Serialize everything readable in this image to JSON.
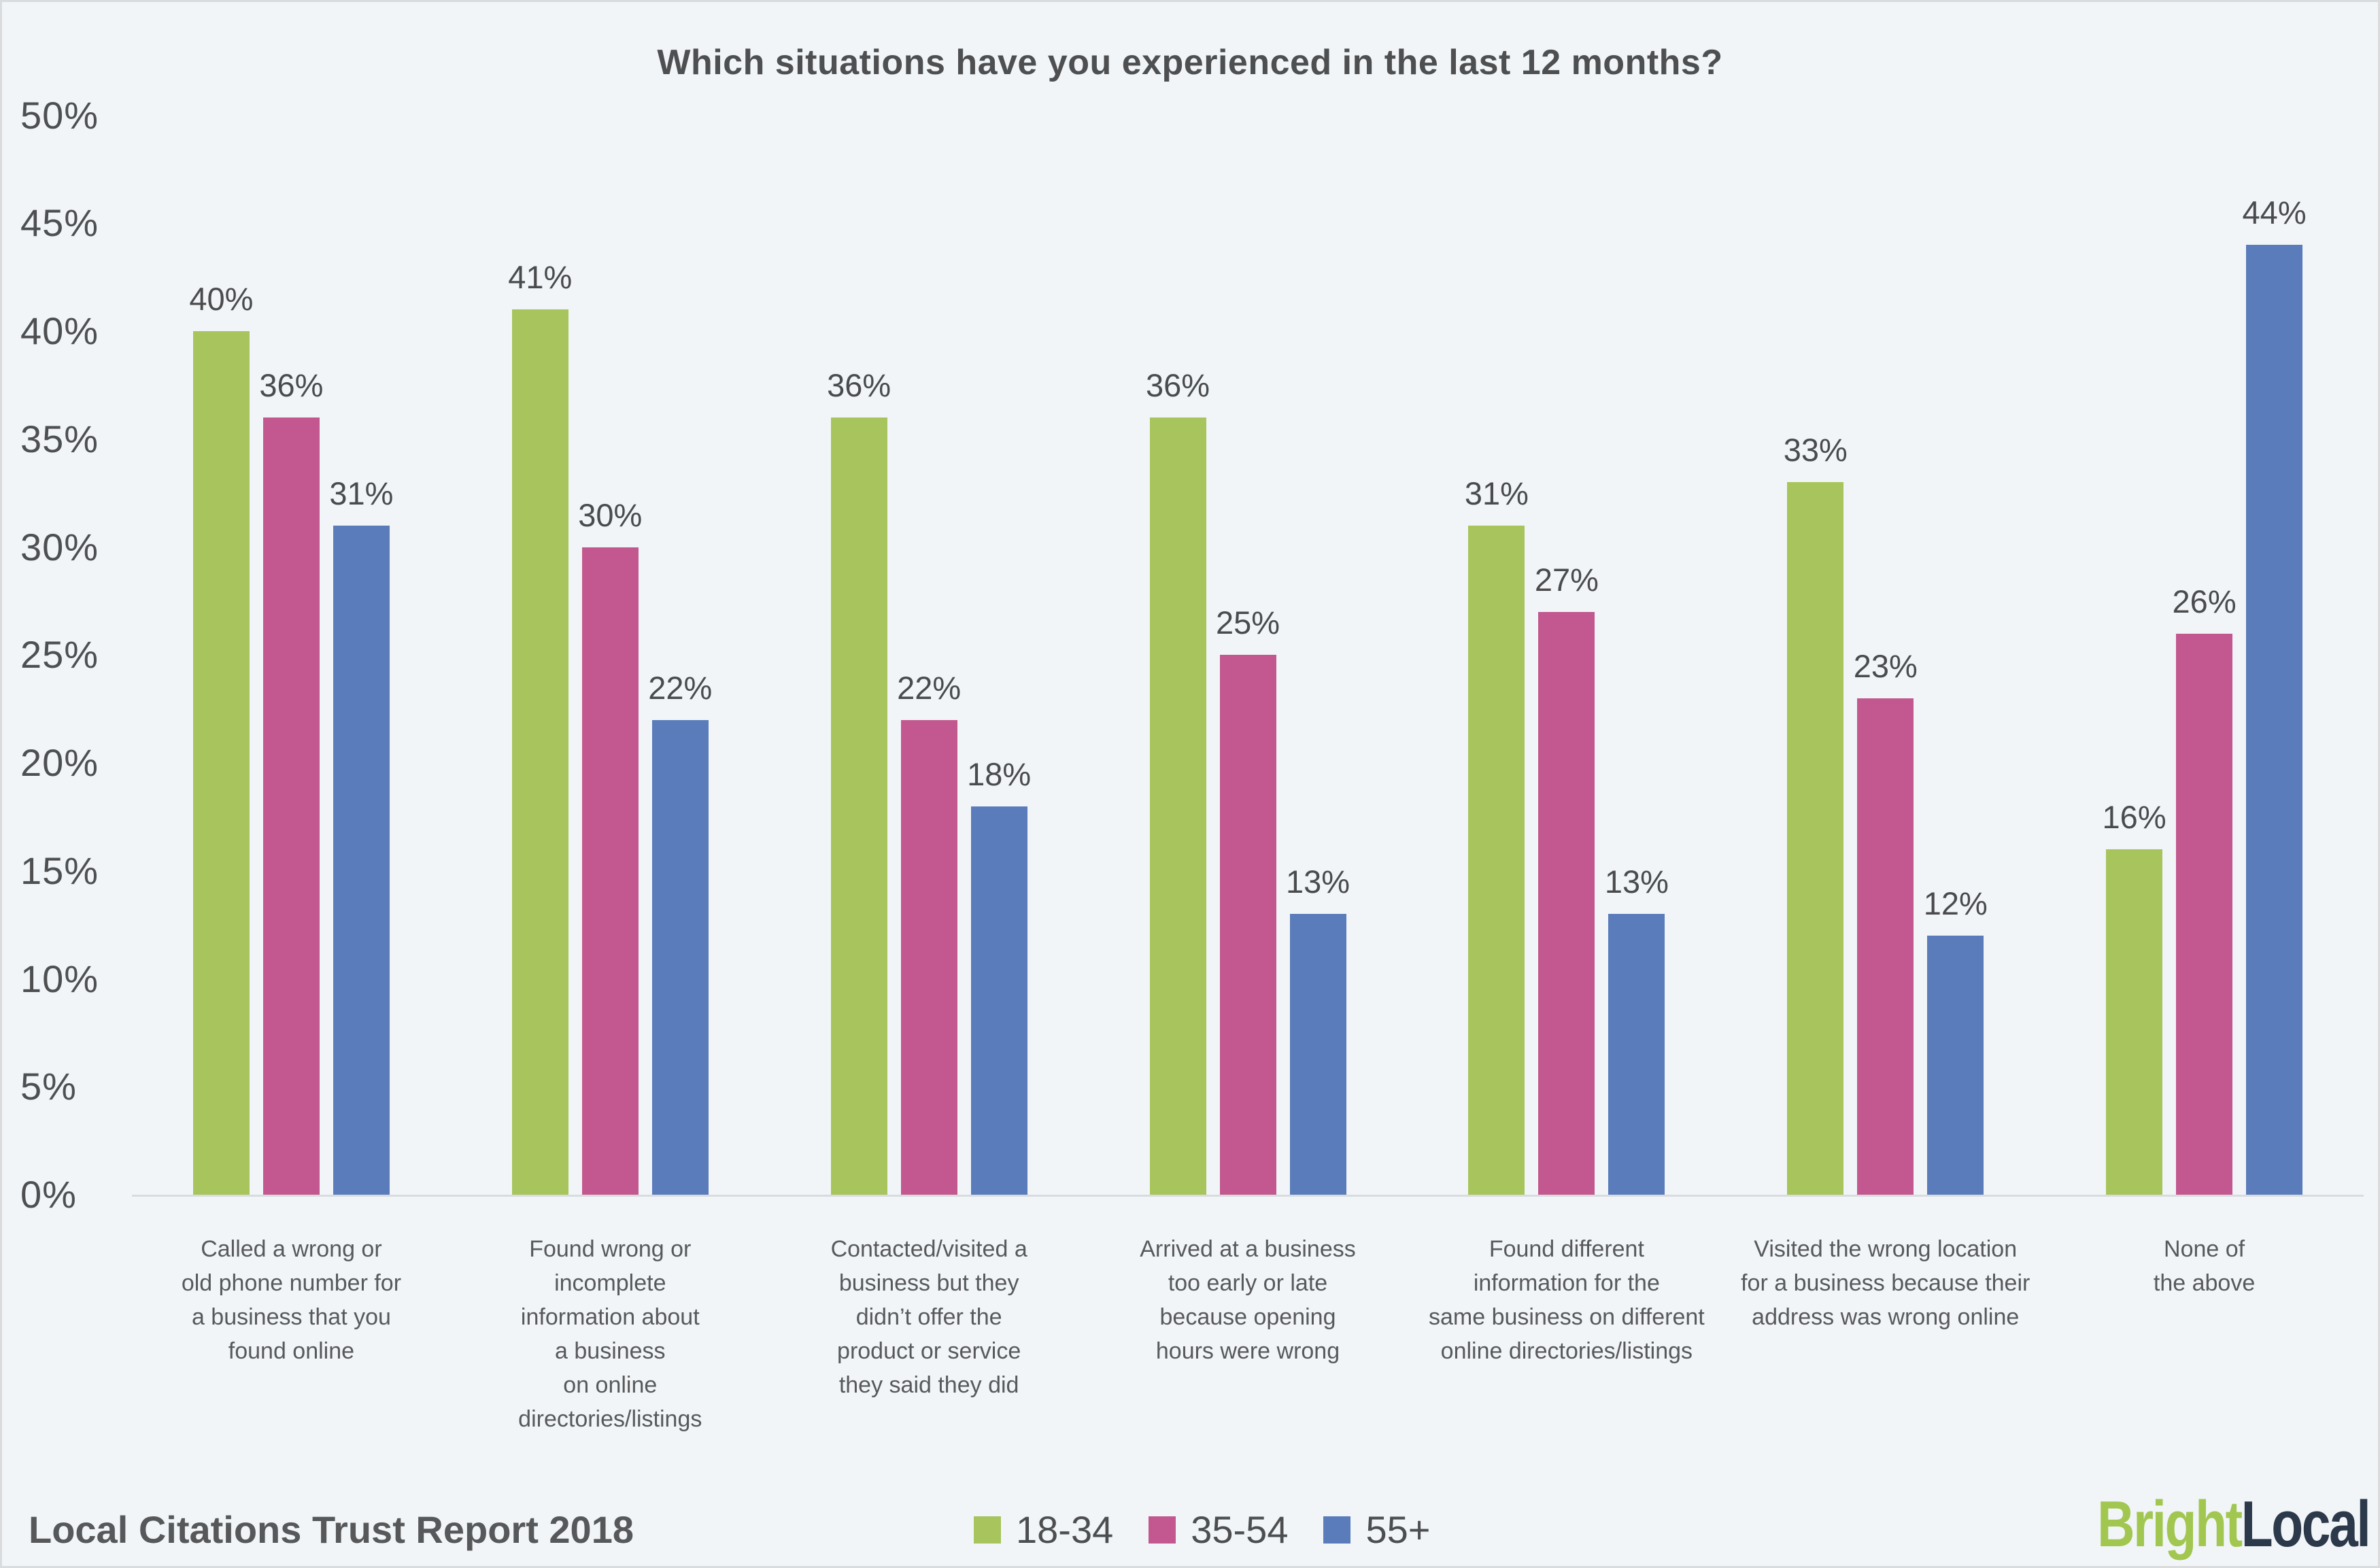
{
  "title": "Which situations have you experienced in the last 12 months?",
  "y_axis": {
    "tick_values": [
      50,
      45,
      40,
      35,
      30,
      25,
      20,
      15,
      10,
      5,
      0
    ],
    "tick_suffix": "%"
  },
  "chart_data": {
    "type": "bar",
    "title": "Which situations have you experienced in the last 12 months?",
    "xlabel": "",
    "ylabel": "",
    "ylim": [
      0,
      50
    ],
    "grid": false,
    "legend_position": "bottom",
    "value_label_format": "percent",
    "categories": [
      "Called a wrong or\nold phone number for\na business that you\nfound online",
      "Found wrong or\nincomplete\ninformation about\na business\non online\ndirectories/listings",
      "Contacted/visited a\nbusiness but they\ndidn’t offer the\nproduct or service\nthey said they did",
      "Arrived at a business\ntoo early or late\nbecause opening\nhours were wrong",
      "Found different\ninformation for the\nsame business on different\nonline directories/listings",
      "Visited the wrong location\nfor a business because their\naddress was wrong online",
      "None of\nthe above"
    ],
    "series": [
      {
        "name": "18-34",
        "color": "#a7c55c",
        "values": [
          40,
          41,
          36,
          36,
          31,
          33,
          16
        ]
      },
      {
        "name": "35-54",
        "color": "#c2588f",
        "values": [
          36,
          30,
          22,
          25,
          27,
          23,
          26
        ]
      },
      {
        "name": "55+",
        "color": "#5a7cbb",
        "values": [
          31,
          22,
          18,
          13,
          13,
          12,
          44
        ]
      }
    ]
  },
  "footer": {
    "source": "Local Citations Trust Report 2018",
    "brand": {
      "bright": "Bright",
      "local": "Local"
    }
  },
  "colors": {
    "background": "#f1f5f8",
    "axis_line": "#d8dcdf",
    "text": "#4e4f51",
    "series_18_34": "#a7c55c",
    "series_35_54": "#c2588f",
    "series_55_plus": "#5a7cbb",
    "logo_green": "#a2c751",
    "logo_navy": "#2b394a"
  }
}
